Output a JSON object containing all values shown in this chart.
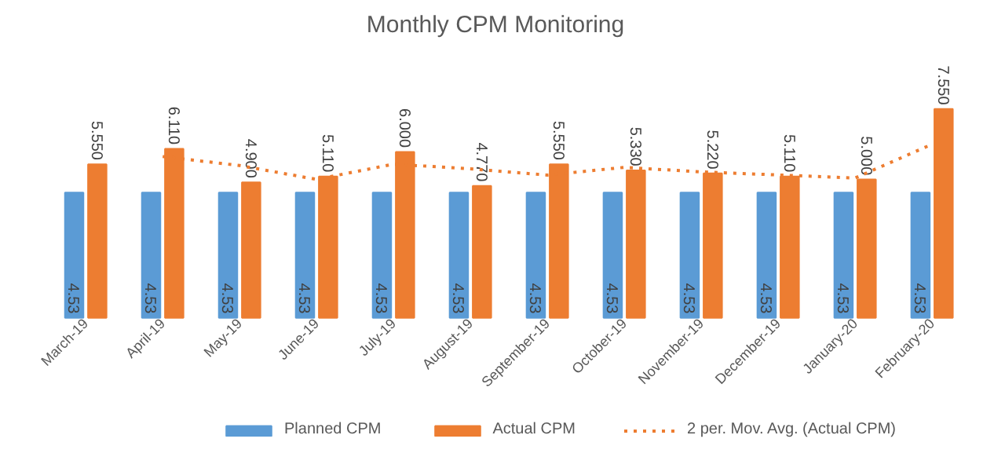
{
  "chart_data": {
    "type": "bar",
    "title": "Monthly CPM Monitoring",
    "categories": [
      "March-19",
      "April-19",
      "May-19",
      "June-19",
      "July-19",
      "August-19",
      "September-19",
      "October-19",
      "November-19",
      "December-19",
      "January-20",
      "February-20"
    ],
    "series": [
      {
        "name": "Planned CPM",
        "color": "#5b9bd5",
        "values": [
          4.53,
          4.53,
          4.53,
          4.53,
          4.53,
          4.53,
          4.53,
          4.53,
          4.53,
          4.53,
          4.53,
          4.53
        ],
        "value_labels": [
          "4.53",
          "4.53",
          "4.53",
          "4.53",
          "4.53",
          "4.53",
          "4.53",
          "4.53",
          "4.53",
          "4.53",
          "4.53",
          "4.53"
        ]
      },
      {
        "name": "Actual CPM",
        "color": "#ed7d31",
        "values": [
          5.55,
          6.11,
          4.9,
          5.11,
          6.0,
          4.77,
          5.55,
          5.33,
          5.22,
          5.11,
          5.0,
          7.55
        ],
        "value_labels": [
          "5.550",
          "6.110",
          "4.900",
          "5.110",
          "6.000",
          "4.770",
          "5.550",
          "5.330",
          "5.220",
          "5.110",
          "5.000",
          "7.550"
        ]
      },
      {
        "name": "2 per. Mov. Avg. (Actual CPM)",
        "type": "line",
        "line_style": "dotted",
        "color": "#ed7d31",
        "values": [
          null,
          5.83,
          5.505,
          5.005,
          5.555,
          5.385,
          5.16,
          5.44,
          5.275,
          5.165,
          5.055,
          6.275
        ]
      }
    ],
    "tick_labels": "x",
    "grid": false,
    "legend": "bottom"
  }
}
